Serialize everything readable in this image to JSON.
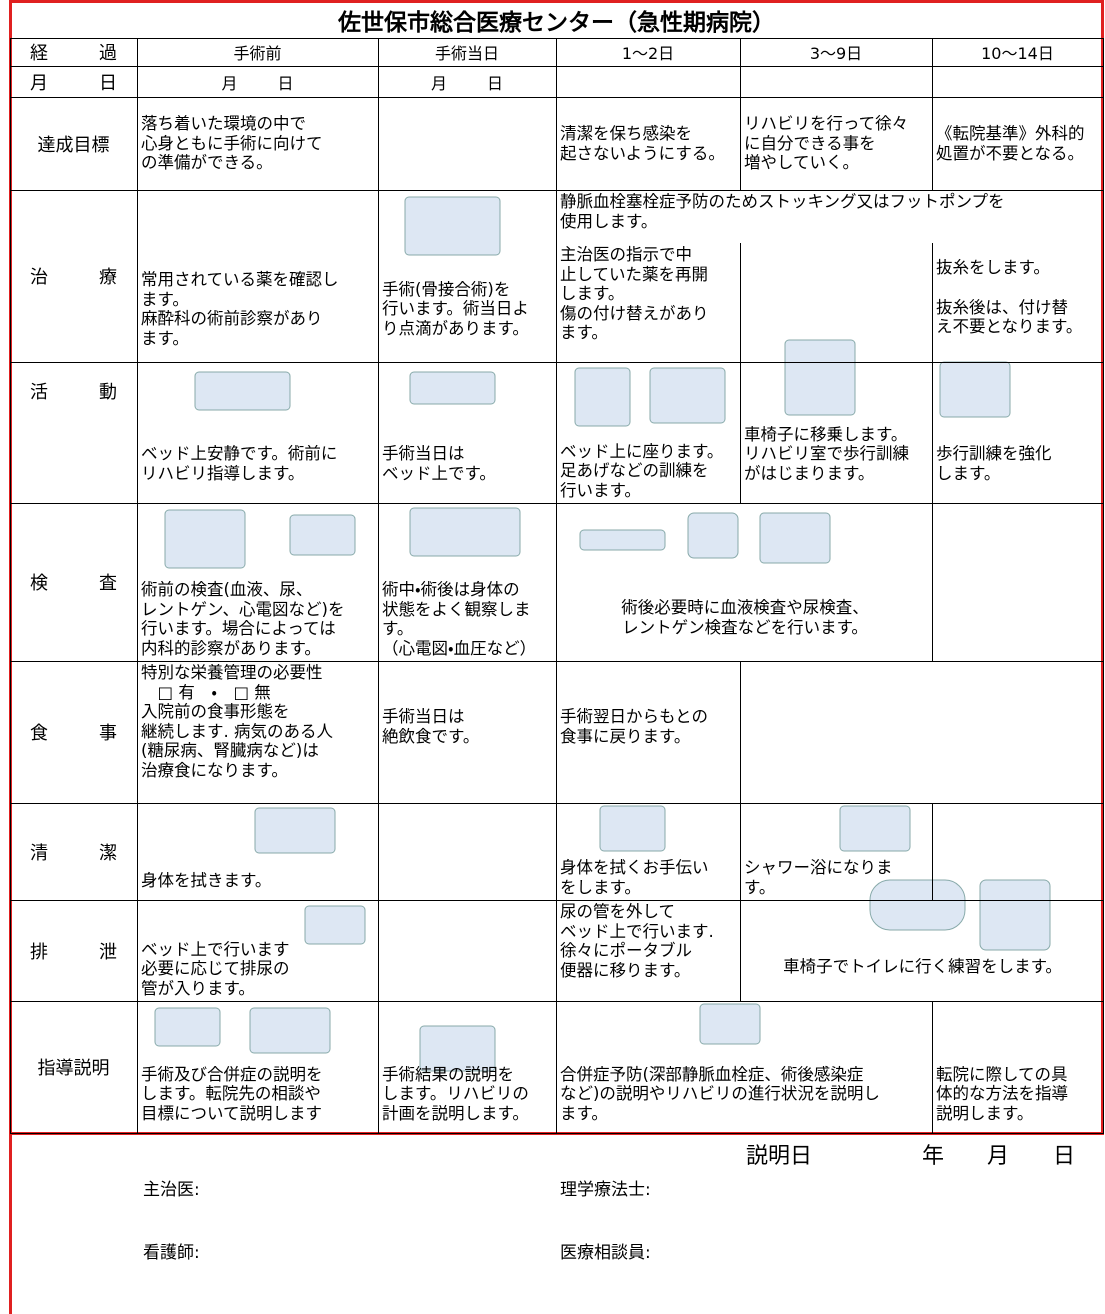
{
  "title": "佐世保市総合医療センター（急性期病院）",
  "header": {
    "label": [
      "経",
      "過"
    ],
    "columns": [
      "手術前",
      "手術当日",
      "1〜2日",
      "3〜9日",
      "10〜14日"
    ]
  },
  "date_row": {
    "label": [
      "月",
      "日"
    ],
    "cells": [
      [
        "月",
        "日"
      ],
      [
        "月",
        "日"
      ]
    ]
  },
  "rows": [
    {
      "label": [
        "達成目標"
      ],
      "cells": [
        [
          "落ち着いた環境の中で",
          "心身ともに手術に向けて",
          "の準備ができる。"
        ],
        [
          "清潔を保ち感染を",
          "起さないようにする。"
        ],
        [
          "リハビリを行って徐々",
          "に自分できる事を",
          "増やしていく。"
        ],
        [
          "《転院基準》外科的",
          "処置が不要となる。"
        ]
      ]
    },
    {
      "label": [
        "治",
        "療"
      ],
      "cells": [
        [
          "常用されている薬を確認し",
          "ます。",
          "麻酔科の術前診察があり",
          "ます。"
        ],
        [
          "手術(骨接合術)を",
          "行います。術当日よ",
          "り点滴があります。"
        ],
        [
          "静脈血栓塞栓症予防のためストッキング又はフットポンプを",
          "使用します。"
        ],
        [
          "主治医の指示で中",
          "止していた薬を再開",
          "します。",
          "傷の付け替えがあり",
          "ます。"
        ],
        [
          "抜糸をします。",
          "抜糸後は、付け替",
          "え不要となります。"
        ]
      ]
    },
    {
      "label": [
        "活",
        "動"
      ],
      "cells": [
        [
          "ベッド上安静です。術前に",
          "リハビリ指導します。"
        ],
        [
          "手術当日は",
          "ベッド上です。"
        ],
        [
          "ベッド上に座ります。",
          "足あげなどの訓練を",
          "行います。"
        ],
        [
          "車椅子に移乗します。",
          "リハビリ室で歩行訓練",
          "がはじまります。"
        ],
        [
          "歩行訓練を強化",
          "します。"
        ]
      ]
    },
    {
      "label": [
        "検",
        "査"
      ],
      "cells": [
        [
          "術前の検査(血液、尿、",
          "レントゲン、心電図など)を",
          "行います。場合によっては",
          "内科的診察があります。"
        ],
        [
          "術中・術後は身体の",
          "状態をよく観察しま",
          "す。",
          "（心電図・血圧など）"
        ],
        [
          "術後必要時に血液検査や尿検査、",
          "レントゲン検査などを行います。"
        ]
      ]
    },
    {
      "label": [
        "食",
        "事"
      ],
      "cells": [
        [
          "特別な栄養管理の必要性",
          "　□ 有　・　□ 無",
          "入院前の食事形態を",
          "継続します. 病気のある人",
          "(糖尿病、腎臓病など)は",
          "治療食になります。"
        ],
        [
          "手術当日は",
          "絶飲食です。"
        ],
        [
          "手術翌日からもとの",
          "食事に戻ります。"
        ]
      ]
    },
    {
      "label": [
        "清",
        "潔"
      ],
      "cells": [
        [
          "身体を拭きます。"
        ],
        [
          "身体を拭くお手伝い",
          "をします。"
        ],
        [
          "シャワー浴になりま",
          "す。"
        ]
      ]
    },
    {
      "label": [
        "排",
        "泄"
      ],
      "cells": [
        [
          "ベッド上で行います",
          "必要に応じて排尿の",
          "管が入ります。"
        ],
        [
          "尿の管を外して",
          "ベッド上で行います.",
          "徐々にポータブル",
          "便器に移ります。"
        ],
        [
          "車椅子でトイレに行く練習をします。"
        ]
      ]
    },
    {
      "label": [
        "指導説明"
      ],
      "cells": [
        [
          "手術及び合併症の説明を",
          "します。転院先の相談や",
          "目標について説明します"
        ],
        [
          "手術結果の説明を",
          "します。リハビリの",
          "計画を説明します。"
        ],
        [
          "合併症予防(深部静脈血栓症、術後感染症",
          "など)の説明やリハビリの進行状況を説明し",
          "ます。"
        ],
        [
          "転院に際しての具",
          "体的な方法を指導",
          "説明します。"
        ]
      ]
    }
  ],
  "footer": {
    "date_label": "説明日",
    "year": "年",
    "month": "月",
    "day": "日",
    "fields": [
      "主治医:",
      "理学療法士:",
      "看護師:",
      "医療相談員:"
    ]
  }
}
